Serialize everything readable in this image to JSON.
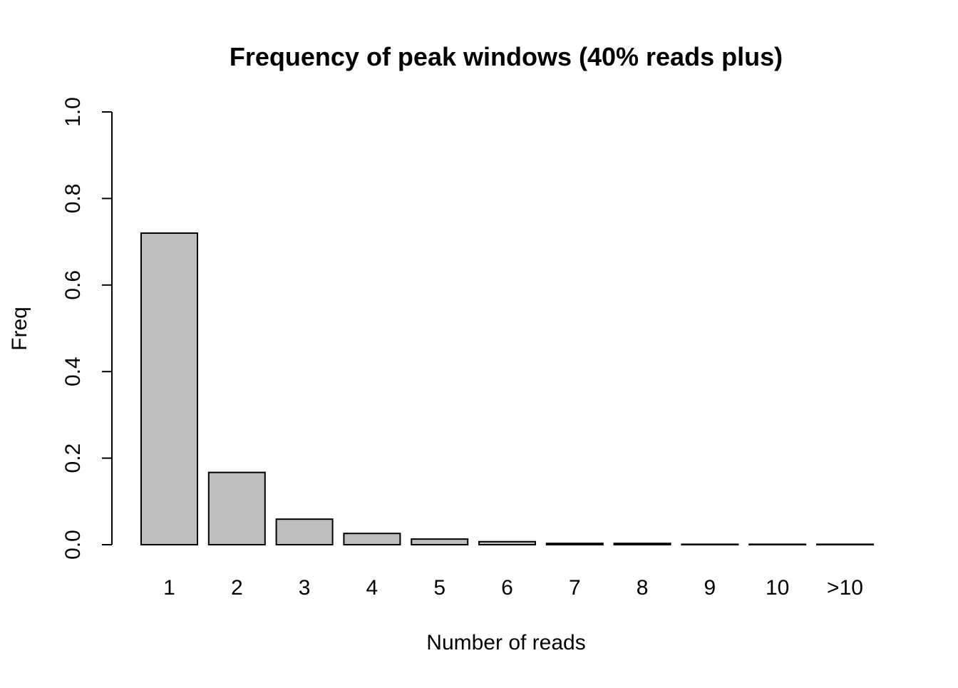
{
  "chart_data": {
    "type": "bar",
    "title": "Frequency of peak windows (40% reads plus)",
    "xlabel": "Number of reads",
    "ylabel": "Freq",
    "categories": [
      "1",
      "2",
      "3",
      "4",
      "5",
      "6",
      "7",
      "8",
      "9",
      "10",
      ">10"
    ],
    "values": [
      0.72,
      0.167,
      0.059,
      0.026,
      0.013,
      0.007,
      0.003,
      0.003,
      0.001,
      0.001,
      0.001
    ],
    "ylim": [
      0,
      1
    ],
    "yticks": [
      "0.0",
      "0.2",
      "0.4",
      "0.6",
      "0.8",
      "1.0"
    ],
    "grid": false,
    "legend": "none",
    "bar_fill": "#bebebe",
    "bar_stroke": "#000000"
  }
}
